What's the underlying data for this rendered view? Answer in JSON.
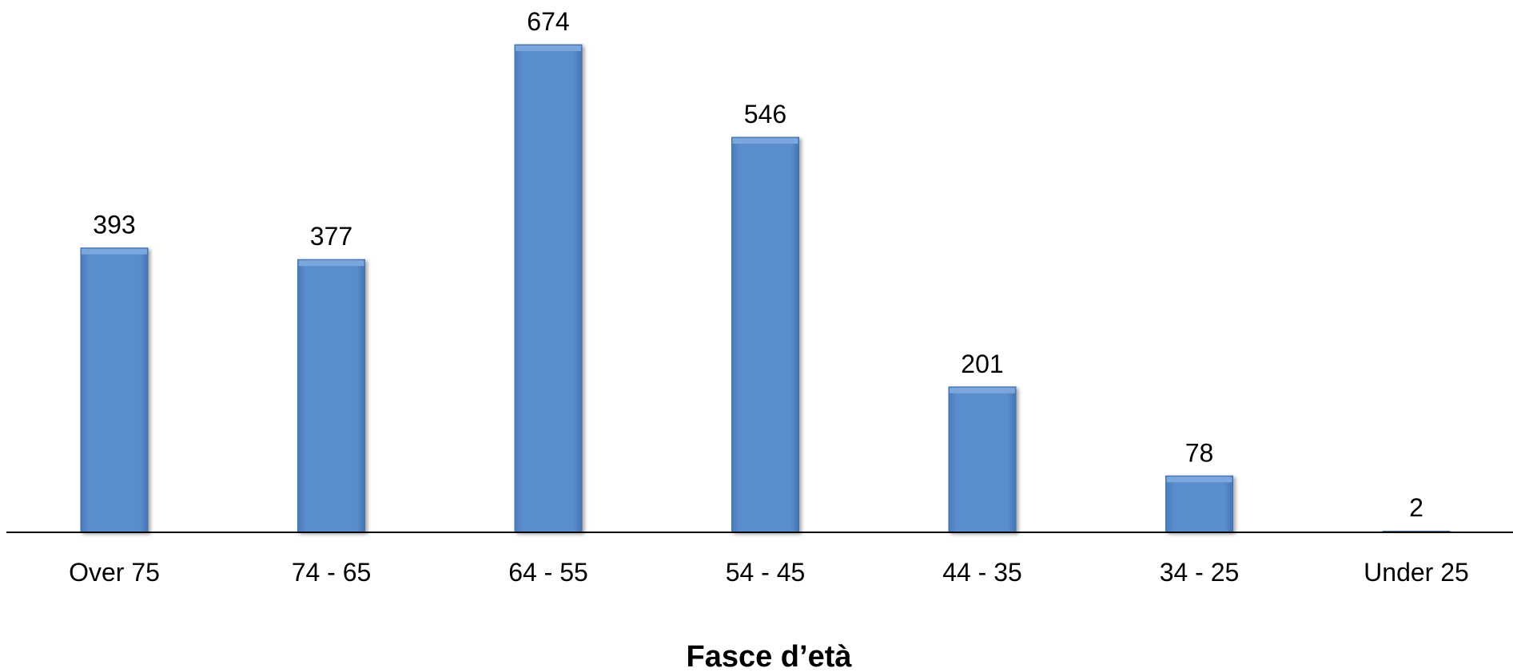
{
  "chart_data": {
    "type": "bar",
    "categories": [
      "Over 75",
      "74 - 65",
      "64 - 55",
      "54 - 45",
      "44 - 35",
      "34 - 25",
      "Under 25"
    ],
    "values": [
      393,
      377,
      674,
      546,
      201,
      78,
      2
    ],
    "title": "",
    "xlabel": "Fasce d’età",
    "ylabel": "",
    "ylim": [
      0,
      674
    ],
    "grid": false,
    "legend": "none",
    "data_labels": true,
    "colors": {
      "bar": "#5589C9",
      "bar_top": "#7BA7DD",
      "bar_edge": "#3F6FAA",
      "axis": "#000000"
    }
  }
}
